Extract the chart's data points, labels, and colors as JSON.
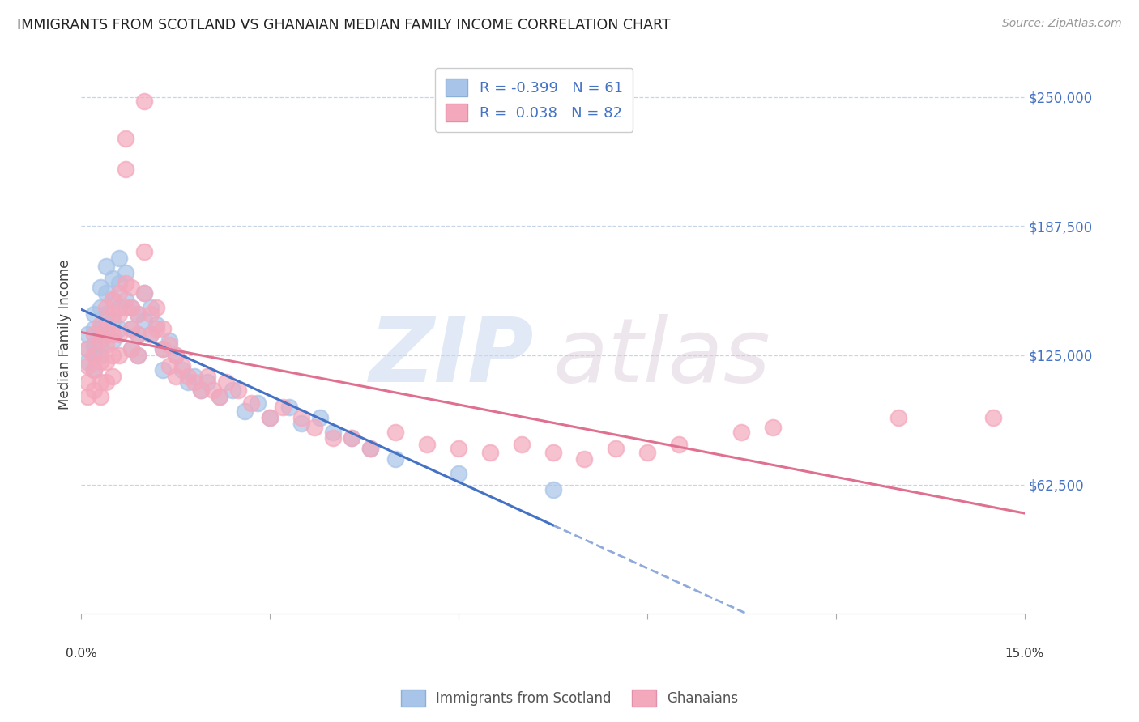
{
  "title": "IMMIGRANTS FROM SCOTLAND VS GHANAIAN MEDIAN FAMILY INCOME CORRELATION CHART",
  "source": "Source: ZipAtlas.com",
  "ylabel": "Median Family Income",
  "ytick_labels": [
    "$62,500",
    "$125,000",
    "$187,500",
    "$250,000"
  ],
  "ytick_values": [
    62500,
    125000,
    187500,
    250000
  ],
  "ylim": [
    0,
    270000
  ],
  "xlim": [
    0.0,
    0.15
  ],
  "scotland_color": "#a8c4e8",
  "ghanaian_color": "#f4a8bc",
  "scotland_R": -0.399,
  "scotland_N": 61,
  "ghanaian_R": 0.038,
  "ghanaian_N": 82,
  "scotland_line_color": "#4472c4",
  "ghanaian_line_color": "#e07090",
  "watermark_zip": "ZIP",
  "watermark_atlas": "atlas",
  "legend_label_scotland": "Immigrants from Scotland",
  "legend_label_ghanaian": "Ghanaians",
  "scotland_x": [
    0.001,
    0.001,
    0.001,
    0.002,
    0.002,
    0.002,
    0.002,
    0.002,
    0.003,
    0.003,
    0.003,
    0.003,
    0.003,
    0.004,
    0.004,
    0.004,
    0.004,
    0.005,
    0.005,
    0.005,
    0.005,
    0.006,
    0.006,
    0.006,
    0.006,
    0.007,
    0.007,
    0.008,
    0.008,
    0.008,
    0.009,
    0.009,
    0.009,
    0.01,
    0.01,
    0.011,
    0.011,
    0.012,
    0.013,
    0.013,
    0.014,
    0.015,
    0.016,
    0.017,
    0.018,
    0.019,
    0.02,
    0.022,
    0.024,
    0.026,
    0.028,
    0.03,
    0.033,
    0.035,
    0.038,
    0.04,
    0.043,
    0.046,
    0.05,
    0.06,
    0.075
  ],
  "scotland_y": [
    135000,
    128000,
    122000,
    145000,
    138000,
    130000,
    125000,
    118000,
    158000,
    148000,
    138000,
    130000,
    125000,
    168000,
    155000,
    145000,
    135000,
    162000,
    152000,
    142000,
    132000,
    172000,
    160000,
    148000,
    138000,
    165000,
    152000,
    148000,
    138000,
    128000,
    145000,
    135000,
    125000,
    155000,
    142000,
    148000,
    135000,
    140000,
    128000,
    118000,
    132000,
    125000,
    118000,
    112000,
    115000,
    108000,
    112000,
    105000,
    108000,
    98000,
    102000,
    95000,
    100000,
    92000,
    95000,
    88000,
    85000,
    80000,
    75000,
    68000,
    60000
  ],
  "ghanaian_x": [
    0.001,
    0.001,
    0.001,
    0.001,
    0.002,
    0.002,
    0.002,
    0.002,
    0.003,
    0.003,
    0.003,
    0.003,
    0.003,
    0.004,
    0.004,
    0.004,
    0.004,
    0.004,
    0.005,
    0.005,
    0.005,
    0.005,
    0.005,
    0.006,
    0.006,
    0.006,
    0.006,
    0.007,
    0.007,
    0.007,
    0.007,
    0.008,
    0.008,
    0.008,
    0.008,
    0.009,
    0.009,
    0.009,
    0.01,
    0.01,
    0.01,
    0.011,
    0.011,
    0.012,
    0.012,
    0.013,
    0.013,
    0.014,
    0.014,
    0.015,
    0.015,
    0.016,
    0.017,
    0.018,
    0.019,
    0.02,
    0.021,
    0.022,
    0.023,
    0.025,
    0.027,
    0.03,
    0.032,
    0.035,
    0.037,
    0.04,
    0.043,
    0.046,
    0.05,
    0.055,
    0.06,
    0.065,
    0.07,
    0.075,
    0.08,
    0.085,
    0.09,
    0.095,
    0.105,
    0.11,
    0.13,
    0.145
  ],
  "ghanaian_y": [
    128000,
    120000,
    112000,
    105000,
    135000,
    125000,
    118000,
    108000,
    140000,
    132000,
    122000,
    112000,
    105000,
    148000,
    138000,
    130000,
    122000,
    112000,
    152000,
    145000,
    135000,
    125000,
    115000,
    155000,
    145000,
    135000,
    125000,
    230000,
    215000,
    160000,
    148000,
    158000,
    148000,
    138000,
    128000,
    145000,
    135000,
    125000,
    248000,
    175000,
    155000,
    145000,
    135000,
    148000,
    138000,
    138000,
    128000,
    130000,
    120000,
    125000,
    115000,
    120000,
    115000,
    112000,
    108000,
    115000,
    108000,
    105000,
    112000,
    108000,
    102000,
    95000,
    100000,
    95000,
    90000,
    85000,
    85000,
    80000,
    88000,
    82000,
    80000,
    78000,
    82000,
    78000,
    75000,
    80000,
    78000,
    82000,
    88000,
    90000,
    95000,
    95000
  ]
}
